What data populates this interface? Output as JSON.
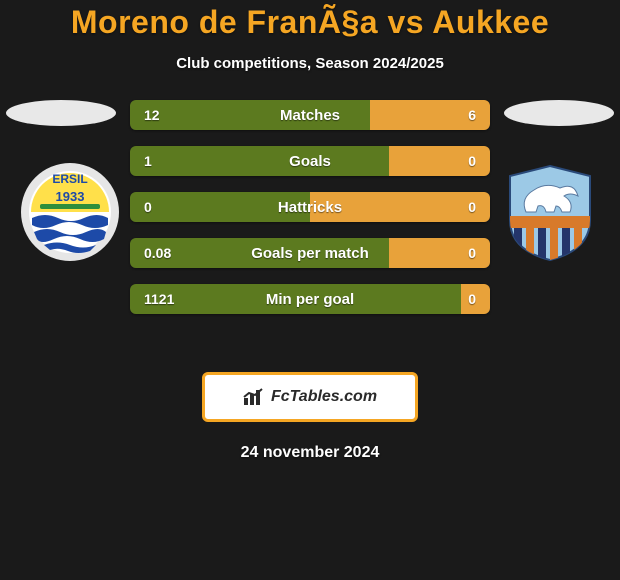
{
  "title": "Moreno de FranÃ§a vs Aukkee",
  "subtitle": "Club competitions, Season 2024/2025",
  "date": "24 november 2024",
  "branding_text": "FcTables.com",
  "colors": {
    "accent": "#f5a623",
    "bar_left": "#5c7a1f",
    "bar_right": "#e8a23a",
    "background": "#1a1a1a"
  },
  "stats": [
    {
      "label": "Matches",
      "left_value": "12",
      "right_value": "6",
      "left_pct": 66.7,
      "right_pct": 33.3
    },
    {
      "label": "Goals",
      "left_value": "1",
      "right_value": "0",
      "left_pct": 72.0,
      "right_pct": 28.0
    },
    {
      "label": "Hattricks",
      "left_value": "0",
      "right_value": "0",
      "left_pct": 50.0,
      "right_pct": 50.0
    },
    {
      "label": "Goals per match",
      "left_value": "0.08",
      "right_value": "0",
      "left_pct": 72.0,
      "right_pct": 28.0
    },
    {
      "label": "Min per goal",
      "left_value": "1121",
      "right_value": "0",
      "left_pct": 92.0,
      "right_pct": 8.0
    }
  ],
  "club_logos": {
    "left": {
      "name": "ERSIL",
      "year": "1933",
      "ring_color": "#e6e6e6",
      "top_color": "#ffe04a",
      "bottom_color": "#ffffff",
      "wave_color": "#1d4aa8",
      "stripe_color": "#2e8f3c"
    },
    "right": {
      "name": "right-club",
      "sky_color": "#9cc9e6",
      "band_color": "#d87a2a",
      "stripe_color": "#24356a",
      "horse_color": "#ffffff"
    }
  }
}
